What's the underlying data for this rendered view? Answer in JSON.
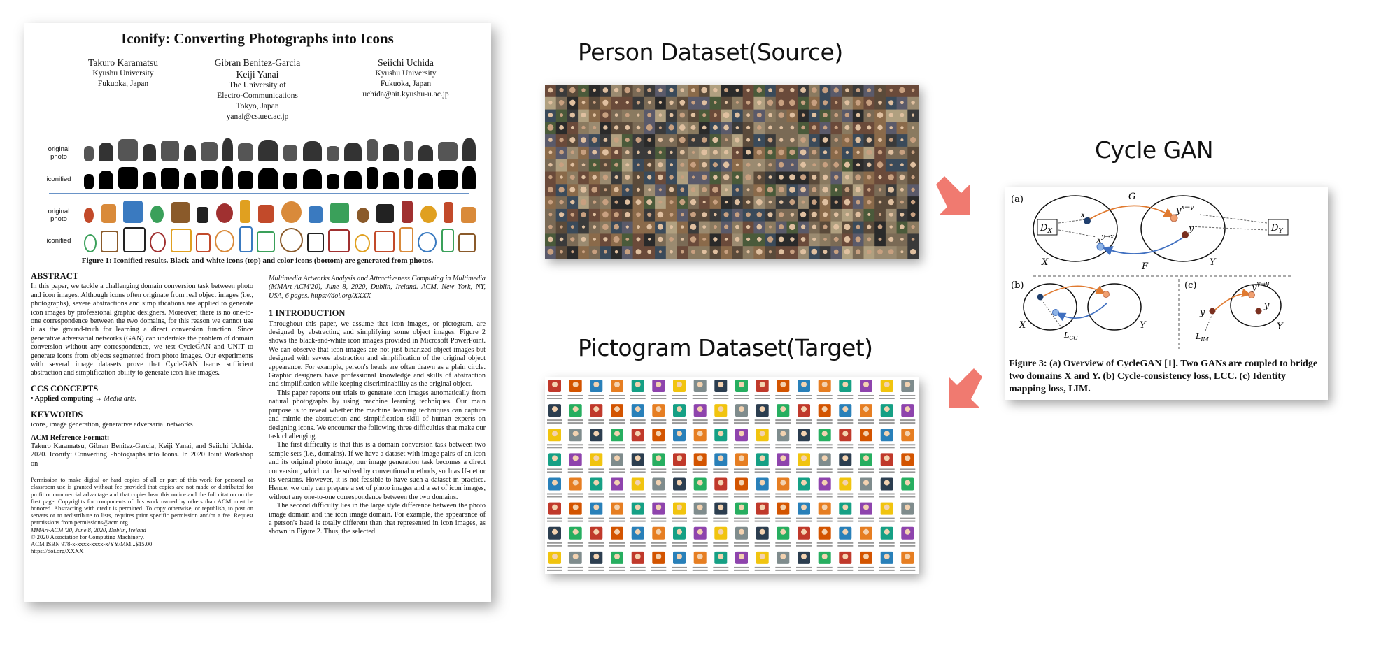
{
  "paper": {
    "title": "Iconify: Converting Photographs into Icons",
    "authors": [
      {
        "name": "Takuro Karamatsu",
        "lines": [
          "Kyushu University",
          "Fukuoka, Japan"
        ]
      },
      {
        "name": "Gibran Benitez-Garcia",
        "name2": "Keiji Yanai",
        "lines": [
          "The University of",
          "Electro-Communications",
          "Tokyo, Japan",
          "yanai@cs.uec.ac.jp"
        ]
      },
      {
        "name": "Seiichi Uchida",
        "lines": [
          "Kyushu University",
          "Fukuoka, Japan",
          "uchida@ait.kyushu-u.ac.jp"
        ]
      }
    ],
    "row_labels": [
      "original photo",
      "iconified",
      "original photo",
      "iconified"
    ],
    "figure1_caption": "Figure 1: Iconified results. Black-and-white icons (top) and color icons (bottom) are generated from photos.",
    "abstract_heading": "ABSTRACT",
    "abstract_text": "In this paper, we tackle a challenging domain conversion task between photo and icon images. Although icons often originate from real object images (i.e., photographs), severe abstractions and simplifications are applied to generate icon images by professional graphic designers. Moreover, there is no one-to-one correspondence between the two domains, for this reason we cannot use it as the ground-truth for learning a direct conversion function. Since generative adversarial networks (GAN) can undertake the problem of domain conversion without any correspondence, we test CycleGAN and UNIT to generate icons from objects segmented from photo images. Our experiments with several image datasets prove that CycleGAN learns sufficient abstraction and simplification ability to generate icon-like images.",
    "ccs_heading": "CCS CONCEPTS",
    "ccs_text_bold": "• Applied computing → ",
    "ccs_text_italic": "Media arts.",
    "keywords_heading": "KEYWORDS",
    "keywords_text": "icons, image generation, generative adversarial networks",
    "acm_ref_heading": "ACM Reference Format:",
    "acm_ref_text": "Takuro Karamatsu, Gibran Benitez-Garcia, Keiji Yanai, and Seiichi Uchida. 2020. Iconify: Converting Photographs into Icons. In 2020 Joint Workshop on",
    "permission_text": "Permission to make digital or hard copies of all or part of this work for personal or classroom use is granted without fee provided that copies are not made or distributed for profit or commercial advantage and that copies bear this notice and the full citation on the first page. Copyrights for components of this work owned by others than ACM must be honored. Abstracting with credit is permitted. To copy otherwise, or republish, to post on servers or to redistribute to lists, requires prior specific permission and/or a fee. Request permissions from permissions@acm.org.",
    "permission_line2": "MMArt-ACM '20, June 8, 2020, Dublin, Ireland",
    "permission_line3": "© 2020 Association for Computing Machinery.",
    "permission_line4": "ACM ISBN 978-x-xxxx-xxxx-x/YY/MM...$15.00",
    "permission_line5": "https://doi.org/XXXX",
    "right_top_text": "Multimedia Artworks Analysis and Attractiveness Computing in Multimedia (MMArt-ACM'20), June 8, 2020, Dublin, Ireland. ACM, New York, NY, USA, 6 pages. https://doi.org/XXXX",
    "intro_heading": "1   INTRODUCTION",
    "intro_p1": "Throughout this paper, we assume that icon images, or pictogram, are designed by abstracting and simplifying some object images. Figure 2 shows the black-and-white icon images provided in Microsoft PowerPoint. We can observe that icon images are not just binarized object images but designed with severe abstraction and simplification of the original object appearance. For example, person's heads are often drawn as a plain circle. Graphic designers have professional knowledge and skills of abstraction and simplification while keeping discriminability as the original object.",
    "intro_p2": "This paper reports our trials to generate icon images automatically from natural photographs by using machine learning techniques. Our main purpose is to reveal whether the machine learning techniques can capture and mimic the abstraction and simplification skill of human experts on designing icons. We encounter the following three difficulties that make our task challenging.",
    "intro_p3": "The first difficulty is that this is a domain conversion task between two sample sets (i.e., domains). If we have a dataset with image pairs of an icon and its original photo image, our image generation task becomes a direct conversion, which can be solved by conventional methods, such as U-net or its versions. However, it is not feasible to have such a dataset in practice. Hence, we only can prepare a set of photo images and a set of icon images, without any one-to-one correspondence between the two domains.",
    "intro_p4": "The second difficulty lies in the large style difference between the photo image domain and the icon image domain. For example, the appearance of a person's head is totally different than that represented in icon images, as shown in Figure 2. Thus, the selected"
  },
  "person_dataset_label": "Person Dataset(Source)",
  "pictogram_dataset_label": "Pictogram Dataset(Target)",
  "cycle_gan_label": "Cycle GAN",
  "figure3": {
    "panel_labels": [
      "(a)",
      "(b)",
      "(c)"
    ],
    "symbols": {
      "dx": "D",
      "dx_sub": "X",
      "dy": "D",
      "dy_sub": "Y",
      "G": "G",
      "F": "F",
      "X": "X",
      "Y": "Y",
      "x": "x",
      "y": "y",
      "yx": "y→x",
      "xy": "x→y",
      "yy": "y→y",
      "lcc": "L",
      "lcc_sub": "CC",
      "lim": "L",
      "lim_sub": "IM"
    },
    "caption": "Figure 3: (a) Overview of CycleGAN [1]. Two GANs are coupled to bridge two domains X and Y. (b) Cycle-consistency loss, LCC. (c) Identity mapping loss, LIM."
  },
  "colors": {
    "arrow": "#f07a70",
    "orange_dot": "#f0a070",
    "blue_dot": "#8fb4e6",
    "dark_dot": "#7a3020",
    "navy_dot": "#1f3f6e",
    "orange_arrow": "#e07a30",
    "blue_arrow": "#3f6fc0",
    "separator": "#6a94c8"
  }
}
